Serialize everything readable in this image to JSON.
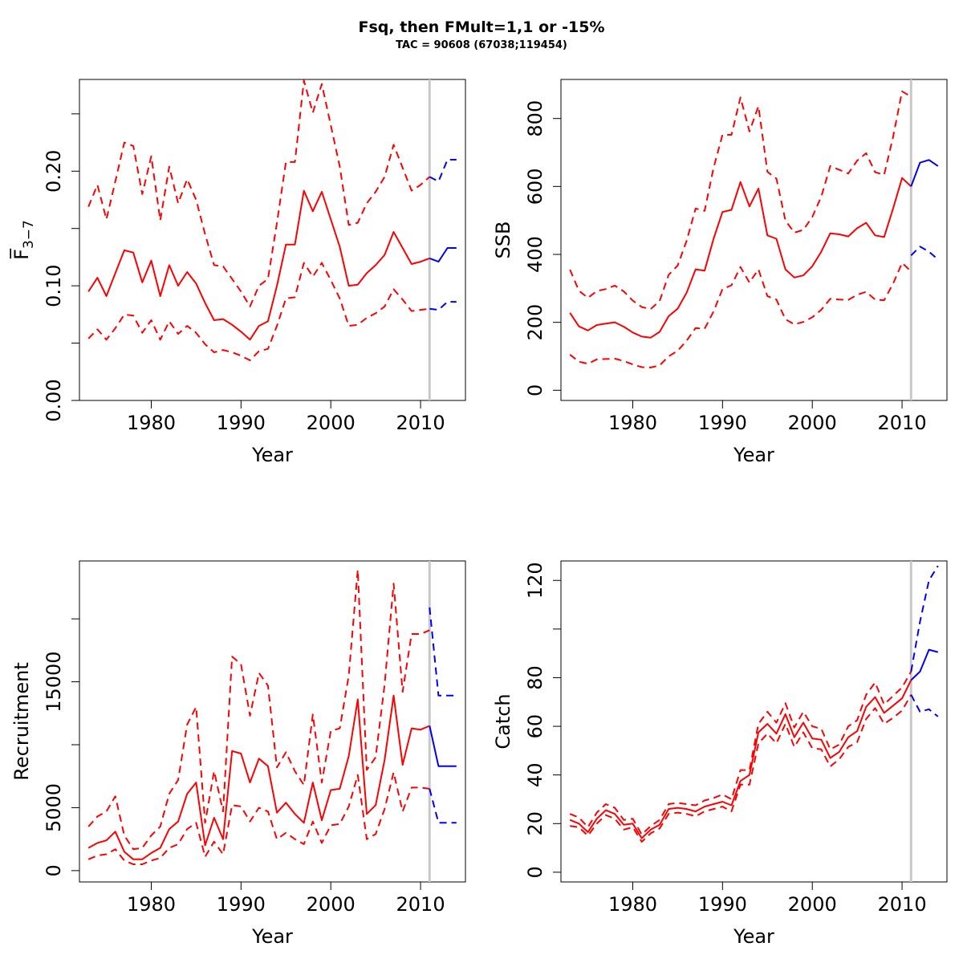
{
  "title": "Fsq, then FMult=1,1 or -15%",
  "subtitle": "TAC = 90608 (67038;119454)",
  "colors": {
    "history": "#ff0000",
    "forecast": "#0000ff",
    "divider": "#c8c8c8"
  },
  "chart_data": [
    {
      "type": "line",
      "id": "F",
      "xlabel": "Year",
      "ylabel": "F̅",
      "ylabel_sub": "3−7",
      "xlim": [
        1972,
        2015
      ],
      "ylim": [
        0,
        0.28
      ],
      "xticks": [
        1980,
        1990,
        2000,
        2010
      ],
      "xtick_labels": [
        "1980",
        "1990",
        "2000",
        "2010"
      ],
      "yticks": [
        0,
        0.05,
        0.1,
        0.15,
        0.2,
        0.25
      ],
      "ytick_labels": [
        "0.00",
        "",
        "0.10",
        "",
        "0.20",
        ""
      ],
      "divider_x": 2011,
      "history_x": [
        1973,
        1974,
        1975,
        1976,
        1977,
        1978,
        1979,
        1980,
        1981,
        1982,
        1983,
        1984,
        1985,
        1986,
        1987,
        1988,
        1989,
        1990,
        1991,
        1992,
        1993,
        1994,
        1995,
        1996,
        1997,
        1998,
        1999,
        2000,
        2001,
        2002,
        2003,
        2004,
        2005,
        2006,
        2007,
        2008,
        2009,
        2010,
        2011
      ],
      "history_mid": [
        0.095,
        0.107,
        0.091,
        0.111,
        0.131,
        0.129,
        0.103,
        0.122,
        0.091,
        0.118,
        0.1,
        0.112,
        0.102,
        0.085,
        0.07,
        0.071,
        0.066,
        0.06,
        0.053,
        0.065,
        0.069,
        0.1,
        0.136,
        0.136,
        0.183,
        0.165,
        0.182,
        0.158,
        0.134,
        0.1,
        0.101,
        0.111,
        0.118,
        0.127,
        0.147,
        0.133,
        0.119,
        0.121,
        0.124
      ],
      "history_upper": [
        0.169,
        0.188,
        0.158,
        0.191,
        0.225,
        0.222,
        0.18,
        0.213,
        0.157,
        0.204,
        0.172,
        0.193,
        0.175,
        0.145,
        0.118,
        0.117,
        0.106,
        0.095,
        0.082,
        0.1,
        0.106,
        0.155,
        0.208,
        0.208,
        0.279,
        0.251,
        0.276,
        0.24,
        0.204,
        0.153,
        0.155,
        0.172,
        0.182,
        0.195,
        0.223,
        0.203,
        0.183,
        0.188,
        0.195
      ],
      "history_lower": [
        0.054,
        0.062,
        0.053,
        0.063,
        0.075,
        0.074,
        0.059,
        0.07,
        0.053,
        0.069,
        0.058,
        0.065,
        0.059,
        0.049,
        0.042,
        0.044,
        0.042,
        0.039,
        0.035,
        0.043,
        0.045,
        0.065,
        0.089,
        0.09,
        0.12,
        0.108,
        0.12,
        0.105,
        0.089,
        0.065,
        0.066,
        0.072,
        0.076,
        0.082,
        0.097,
        0.088,
        0.078,
        0.079,
        0.08
      ],
      "forecast_x": [
        2011,
        2012,
        2013,
        2014
      ],
      "forecast_mid": [
        0.124,
        0.121,
        0.133,
        0.133
      ],
      "forecast_upper": [
        0.195,
        0.191,
        0.21,
        0.21
      ],
      "forecast_lower": [
        0.08,
        0.079,
        0.086,
        0.086
      ]
    },
    {
      "type": "line",
      "id": "SSB",
      "xlabel": "Year",
      "ylabel": "SSB",
      "xlim": [
        1972,
        2015
      ],
      "ylim": [
        -30,
        915
      ],
      "xticks": [
        1980,
        1990,
        2000,
        2010
      ],
      "xtick_labels": [
        "1980",
        "1990",
        "2000",
        "2010"
      ],
      "yticks": [
        0,
        200,
        400,
        600,
        800
      ],
      "ytick_labels": [
        "0",
        "200",
        "400",
        "600",
        "800"
      ],
      "divider_x": 2011,
      "history_x": [
        1973,
        1974,
        1975,
        1976,
        1977,
        1978,
        1979,
        1980,
        1981,
        1982,
        1983,
        1984,
        1985,
        1986,
        1987,
        1988,
        1989,
        1990,
        1991,
        1992,
        1993,
        1994,
        1995,
        1996,
        1997,
        1998,
        1999,
        2000,
        2001,
        2002,
        2003,
        2004,
        2005,
        2006,
        2007,
        2008,
        2009,
        2010,
        2011
      ],
      "history_mid": [
        228,
        188,
        176,
        192,
        196,
        200,
        187,
        170,
        158,
        155,
        172,
        218,
        240,
        287,
        356,
        352,
        446,
        525,
        531,
        613,
        541,
        594,
        456,
        446,
        356,
        332,
        338,
        365,
        408,
        462,
        459,
        453,
        477,
        493,
        456,
        451,
        535,
        625,
        600
      ],
      "history_upper": [
        355,
        293,
        272,
        292,
        298,
        308,
        291,
        264,
        245,
        239,
        263,
        340,
        367,
        440,
        535,
        528,
        655,
        752,
        752,
        862,
        762,
        836,
        643,
        623,
        500,
        464,
        472,
        510,
        570,
        660,
        649,
        638,
        676,
        698,
        642,
        634,
        746,
        880,
        864
      ],
      "history_lower": [
        105,
        84,
        78,
        91,
        92,
        93,
        86,
        76,
        68,
        67,
        73,
        100,
        116,
        146,
        183,
        181,
        232,
        298,
        309,
        363,
        317,
        356,
        277,
        267,
        209,
        194,
        201,
        215,
        237,
        269,
        267,
        266,
        281,
        290,
        267,
        265,
        314,
        375,
        350
      ],
      "forecast_x": [
        2011,
        2012,
        2013,
        2014
      ],
      "forecast_mid": [
        600,
        670,
        678,
        660
      ],
      "forecast_lower": [
        397,
        423,
        408,
        385
      ]
    },
    {
      "type": "line",
      "id": "Recruitment",
      "xlabel": "Year",
      "ylabel": "Recruitment",
      "xlim": [
        1972,
        2015
      ],
      "ylim": [
        -900,
        24600
      ],
      "xticks": [
        1980,
        1990,
        2000,
        2010
      ],
      "xtick_labels": [
        "1980",
        "1990",
        "2000",
        "2010"
      ],
      "yticks": [
        0,
        5000,
        10000,
        15000,
        20000
      ],
      "ytick_labels": [
        "0",
        "5000",
        "",
        "15000",
        ""
      ],
      "divider_x": 2011,
      "history_x": [
        1973,
        1974,
        1975,
        1976,
        1977,
        1978,
        1979,
        1980,
        1981,
        1982,
        1983,
        1984,
        1985,
        1986,
        1987,
        1988,
        1989,
        1990,
        1991,
        1992,
        1993,
        1994,
        1995,
        1996,
        1997,
        1998,
        1999,
        2000,
        2001,
        2002,
        2003,
        2004,
        2005,
        2006,
        2007,
        2008,
        2009,
        2010,
        2011
      ],
      "history_mid": [
        1800,
        2200,
        2400,
        3100,
        1500,
        900,
        900,
        1400,
        1800,
        3300,
        3900,
        6100,
        7000,
        2000,
        4200,
        2500,
        9500,
        9300,
        7000,
        8900,
        8300,
        4600,
        5400,
        4500,
        3800,
        7000,
        4000,
        6400,
        6500,
        9100,
        13600,
        4500,
        5200,
        8800,
        13900,
        8400,
        11300,
        11200,
        11500
      ],
      "history_upper": [
        3500,
        4300,
        4700,
        5900,
        2800,
        1700,
        1800,
        2800,
        3500,
        6100,
        7200,
        11600,
        13000,
        3800,
        7900,
        4700,
        17000,
        16400,
        12300,
        15700,
        14700,
        8200,
        9400,
        7900,
        6800,
        12400,
        7000,
        11100,
        11300,
        15500,
        23900,
        8000,
        9000,
        14800,
        22800,
        14200,
        18800,
        18800,
        19100
      ],
      "history_lower": [
        900,
        1200,
        1300,
        1700,
        800,
        500,
        500,
        800,
        1000,
        1800,
        2100,
        3300,
        3800,
        1100,
        2300,
        1300,
        5200,
        5100,
        3900,
        5000,
        4700,
        2500,
        3000,
        2500,
        2100,
        3900,
        2200,
        3600,
        3700,
        5100,
        7600,
        2500,
        2900,
        4900,
        7800,
        4700,
        6600,
        6600,
        6500
      ],
      "forecast_x": [
        2011,
        2012,
        2013,
        2014
      ],
      "forecast_mid": [
        11500,
        8300,
        8300,
        8300
      ],
      "forecast_upper": [
        20900,
        13900,
        13900,
        13900
      ],
      "forecast_lower": [
        6500,
        3800,
        3800,
        3800
      ]
    },
    {
      "type": "line",
      "id": "Catch",
      "xlabel": "Year",
      "ylabel": "Catch",
      "xlim": [
        1972,
        2015
      ],
      "ylim": [
        -4,
        128
      ],
      "xticks": [
        1980,
        1990,
        2000,
        2010
      ],
      "xtick_labels": [
        "1980",
        "1990",
        "2000",
        "2010"
      ],
      "yticks": [
        0,
        20,
        40,
        60,
        80,
        100,
        120
      ],
      "ytick_labels": [
        "0",
        "20",
        "40",
        "60",
        "80",
        "",
        "120"
      ],
      "divider_x": 2011,
      "history_x": [
        1973,
        1974,
        1975,
        1976,
        1977,
        1978,
        1979,
        1980,
        1981,
        1982,
        1983,
        1984,
        1985,
        1986,
        1987,
        1988,
        1989,
        1990,
        1991,
        1992,
        1993,
        1994,
        1995,
        1996,
        1997,
        1998,
        1999,
        2000,
        2001,
        2002,
        2003,
        2004,
        2005,
        2006,
        2007,
        2008,
        2009,
        2010,
        2011
      ],
      "history_mid": [
        21.5,
        20.0,
        16.5,
        22.0,
        25.5,
        24.0,
        19.5,
        20.0,
        14.0,
        17.5,
        19.5,
        26.0,
        26.5,
        26.0,
        25.0,
        27.0,
        28.0,
        29.0,
        27.5,
        37.5,
        40.0,
        57.5,
        61.0,
        57.0,
        65.0,
        55.5,
        61.5,
        55.0,
        54.5,
        47.0,
        49.5,
        55.5,
        58.0,
        68.0,
        72.0,
        65.5,
        68.5,
        71.5,
        79.0
      ],
      "history_upper": [
        24,
        22.5,
        18.5,
        24.5,
        28.0,
        26.5,
        21.5,
        22.0,
        15.5,
        19.0,
        21.5,
        28.0,
        28.5,
        28.0,
        27.5,
        29.5,
        30.5,
        32.0,
        30.0,
        42.0,
        42.0,
        61.0,
        66.0,
        61.5,
        69.5,
        59.5,
        66.0,
        60.0,
        59.0,
        50.5,
        52.5,
        60.0,
        62.5,
        73.0,
        78.0,
        69.0,
        72.5,
        76.0,
        82.5
      ],
      "history_lower": [
        19,
        18.5,
        15.0,
        20.0,
        23.5,
        22.0,
        17.5,
        18.5,
        12.5,
        16.0,
        18.0,
        24.0,
        24.5,
        24.0,
        23.0,
        25.0,
        26.0,
        27.0,
        25.0,
        36.0,
        36.0,
        53.0,
        57.0,
        53.0,
        61.0,
        51.5,
        57.5,
        51.0,
        50.5,
        43.5,
        46.5,
        51.5,
        53.5,
        63.0,
        67.5,
        61.0,
        63.5,
        66.5,
        73.0
      ],
      "forecast_x": [
        2011,
        2012,
        2013,
        2014
      ],
      "forecast_mid": [
        79.0,
        82.5,
        91.5,
        90.5
      ],
      "forecast_upper": [
        82.5,
        103.0,
        120.0,
        126.0
      ],
      "forecast_lower": [
        73.0,
        66.0,
        67.0,
        64.0
      ]
    }
  ]
}
